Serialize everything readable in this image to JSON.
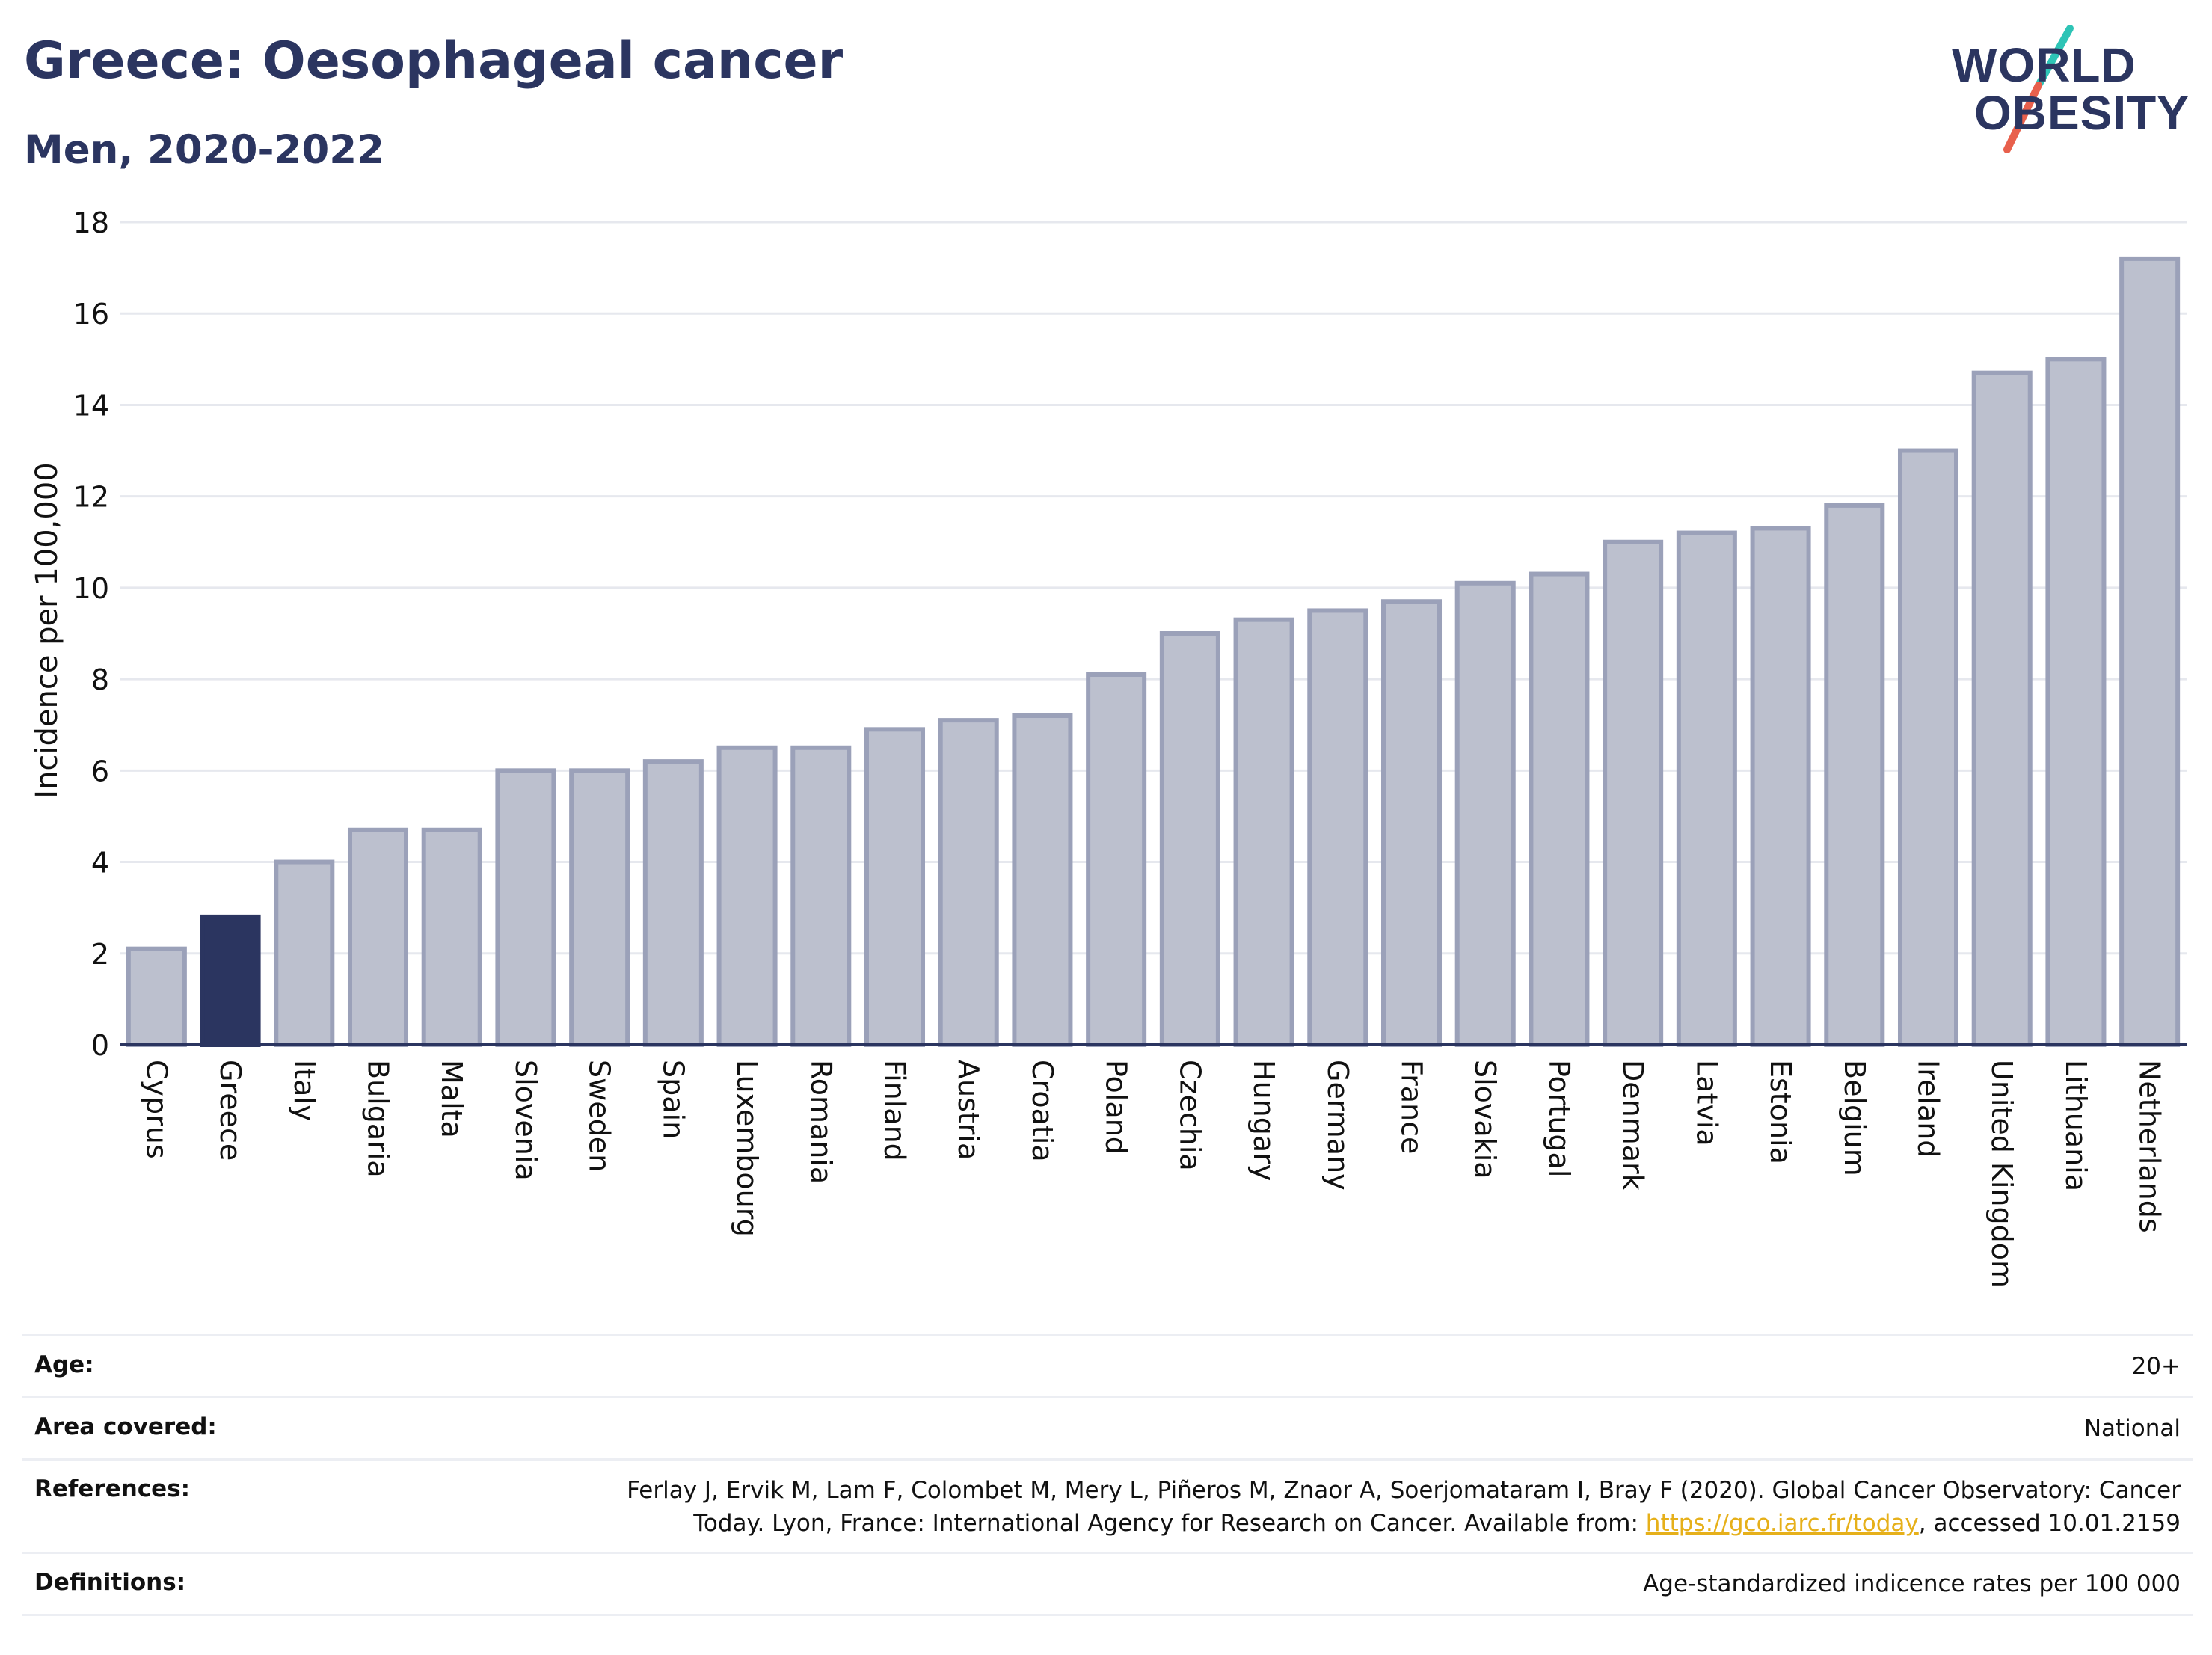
{
  "header": {
    "title": "Greece: Oesophageal cancer",
    "subtitle": "Men, 2020-2022"
  },
  "logo": {
    "line1": "WORLD",
    "line2": "OBESITY",
    "colors": {
      "text": "#2b3560",
      "slash_top": "#2ec4b6",
      "slash_bottom": "#e8604c"
    }
  },
  "chart_data": {
    "type": "bar",
    "ylabel": "Incidence per 100,000",
    "xlabel": "",
    "ylim": [
      0,
      18
    ],
    "yticks": [
      0,
      2,
      4,
      6,
      8,
      10,
      12,
      14,
      16,
      18
    ],
    "grid": true,
    "highlight": "Greece",
    "colors": {
      "bar": "#bcc0ce",
      "bar_edge": "#9ba1b9",
      "highlight": "#2b3560",
      "grid": "#e6e8ee",
      "axis": "#2b3560"
    },
    "categories": [
      "Cyprus",
      "Greece",
      "Italy",
      "Bulgaria",
      "Malta",
      "Slovenia",
      "Sweden",
      "Spain",
      "Luxembourg",
      "Romania",
      "Finland",
      "Austria",
      "Croatia",
      "Poland",
      "Czechia",
      "Hungary",
      "Germany",
      "France",
      "Slovakia",
      "Portugal",
      "Denmark",
      "Latvia",
      "Estonia",
      "Belgium",
      "Ireland",
      "United Kingdom",
      "Lithuania",
      "Netherlands"
    ],
    "values": [
      2.1,
      2.8,
      4.0,
      4.7,
      4.7,
      6.0,
      6.0,
      6.2,
      6.5,
      6.5,
      6.9,
      7.1,
      7.2,
      8.1,
      9.0,
      9.3,
      9.5,
      9.7,
      10.1,
      10.3,
      11.0,
      11.2,
      11.3,
      11.8,
      13.0,
      14.7,
      15.0,
      17.2
    ]
  },
  "info": {
    "age": {
      "label": "Age:",
      "value": "20+"
    },
    "area": {
      "label": "Area covered:",
      "value": "National"
    },
    "references": {
      "label": "References:",
      "line1": "Ferlay J, Ervik M, Lam F, Colombet M, Mery L, Piñeros M, Znaor A, Soerjomataram I, Bray F (2020). Global Cancer Observatory: Cancer",
      "line2_prefix": "Today. Lyon, France: International Agency for Research on Cancer. Available from: ",
      "link": "https://gco.iarc.fr/today",
      "line2_suffix": ", accessed 10.01.2159"
    },
    "definitions": {
      "label": "Definitions:",
      "value": "Age-standardized indicence rates per 100 000"
    }
  }
}
